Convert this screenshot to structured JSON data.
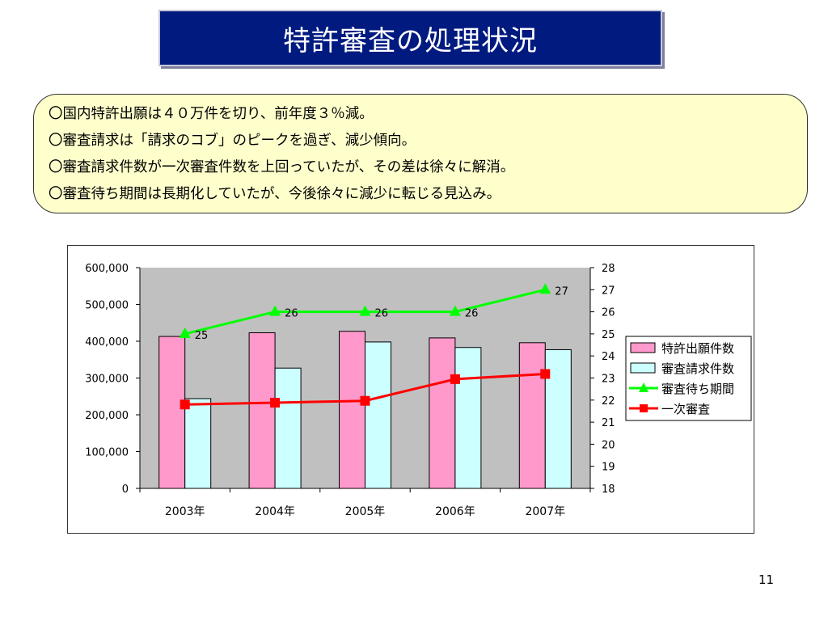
{
  "slide": {
    "title": "特許審査の処理状況",
    "page_number": "11"
  },
  "notes": [
    "〇国内特許出願は４０万件を切り、前年度３％減。",
    "〇審査請求は「請求のコブ」のピークを過ぎ、減少傾向。",
    "〇審査請求件数が一次審査件数を上回っていたが、その差は徐々に解消。",
    "〇審査待ち期間は長期化していたが、今後徐々に減少に転じる見込み。"
  ],
  "chart_data": {
    "type": "bar",
    "categories": [
      "2003年",
      "2004年",
      "2005年",
      "2006年",
      "2007年"
    ],
    "y_left": {
      "ylim": [
        0,
        600000
      ],
      "ticks": [
        "0",
        "100,000",
        "200,000",
        "300,000",
        "400,000",
        "500,000",
        "600,000"
      ]
    },
    "y_right": {
      "ylim": [
        18,
        28
      ],
      "ticks": [
        "18",
        "19",
        "20",
        "21",
        "22",
        "23",
        "24",
        "25",
        "26",
        "27",
        "28"
      ]
    },
    "series": [
      {
        "name": "特許出願件数",
        "type": "bar",
        "axis": "left",
        "color": "#ff99cc",
        "values": [
          413000,
          423000,
          427000,
          409000,
          396000
        ]
      },
      {
        "name": "審査請求件数",
        "type": "bar",
        "axis": "left",
        "color": "#ccffff",
        "values": [
          244000,
          327000,
          398000,
          383000,
          377000
        ]
      },
      {
        "name": "審査待ち期間",
        "type": "line",
        "axis": "right",
        "color": "#00ff00",
        "marker": "triangle",
        "values": [
          25,
          26,
          26,
          26,
          27
        ],
        "data_labels": [
          "25",
          "26",
          "26",
          "26",
          "27"
        ]
      },
      {
        "name": "一次審査",
        "type": "line",
        "axis": "right",
        "color": "#ff0000",
        "marker": "square",
        "values": [
          228000,
          233000,
          238000,
          297000,
          311000
        ],
        "values_axis": "left"
      }
    ],
    "plot_background": "#c0c0c0",
    "legend_position": "right",
    "grid": false
  }
}
